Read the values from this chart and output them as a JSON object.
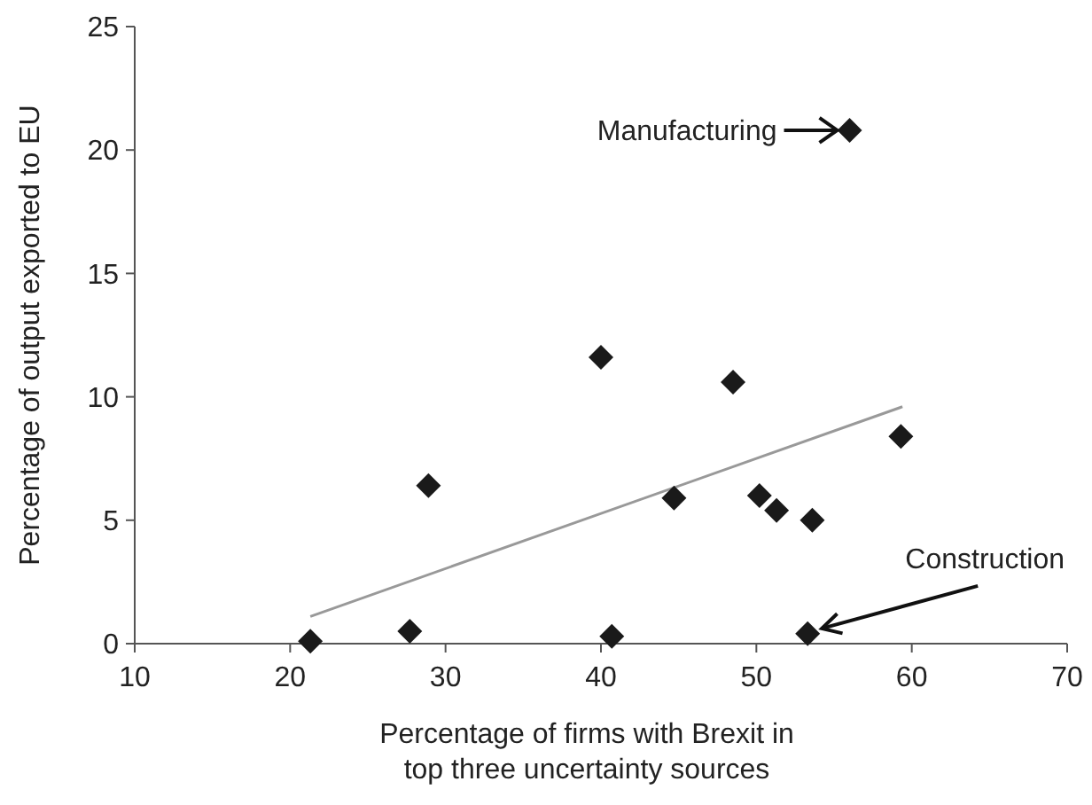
{
  "chart_data": {
    "type": "scatter",
    "xlabel": "Percentage of firms with Brexit in\ntop three uncertainty sources",
    "ylabel": "Percentage of output exported to EU",
    "xlim": [
      10,
      70
    ],
    "xticks": [
      10,
      20,
      30,
      40,
      50,
      60,
      70
    ],
    "ylim": [
      0,
      25
    ],
    "yticks": [
      0,
      5,
      10,
      15,
      20,
      25
    ],
    "grid": false,
    "marker": "diamond",
    "series": [
      {
        "color": "#1a1a1a",
        "x": [
          21.3,
          27.7,
          28.9,
          40.0,
          40.7,
          44.7,
          48.5,
          50.2,
          51.3,
          53.3,
          53.6,
          56.0,
          59.3
        ],
        "values": [
          0.1,
          0.5,
          6.4,
          11.6,
          0.3,
          5.9,
          10.6,
          6.0,
          5.4,
          0.4,
          5.0,
          20.8,
          8.4
        ]
      },
      {
        "type": "line",
        "color": "#999999",
        "line_style": "solid",
        "marker": "none",
        "x": [
          21.3,
          59.4
        ],
        "values": [
          1.1,
          9.6
        ]
      }
    ],
    "annotations": [
      {
        "text": "Manufacturing",
        "x": 56.0,
        "y": 20.8
      },
      {
        "text": "Construction",
        "x": 53.3,
        "y": 0.4
      }
    ]
  }
}
